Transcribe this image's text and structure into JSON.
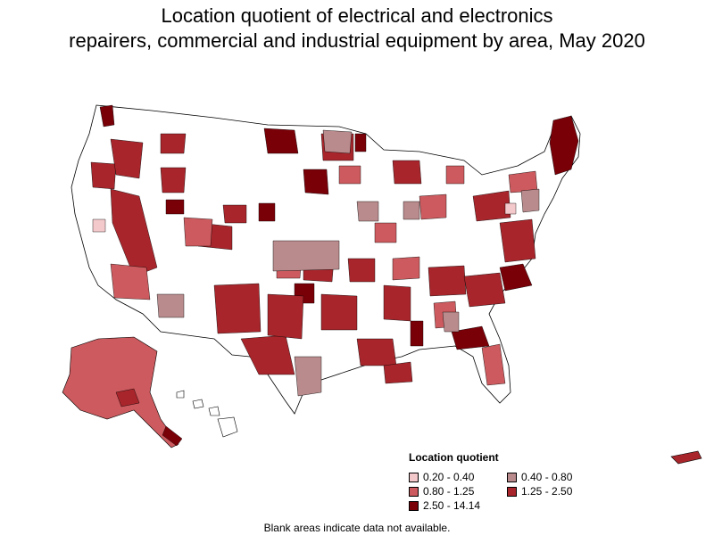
{
  "title_line1": "Location quotient of electrical and electronics",
  "title_line2": "repairers, commercial and industrial equipment by area, May 2020",
  "legend": {
    "title": "Location quotient",
    "items": [
      {
        "label": "0.20 - 0.40",
        "color": "#f4c9cc"
      },
      {
        "label": "0.40 - 0.80",
        "color": "#b98b8d"
      },
      {
        "label": "0.80 - 1.25",
        "color": "#cc5a5e"
      },
      {
        "label": "1.25 - 2.50",
        "color": "#a8252b"
      },
      {
        "label": "2.50 - 14.14",
        "color": "#7a0008"
      }
    ]
  },
  "note": "Blank areas indicate data not available.",
  "colors": {
    "blank": "#ffffff",
    "border": "#000000"
  }
}
